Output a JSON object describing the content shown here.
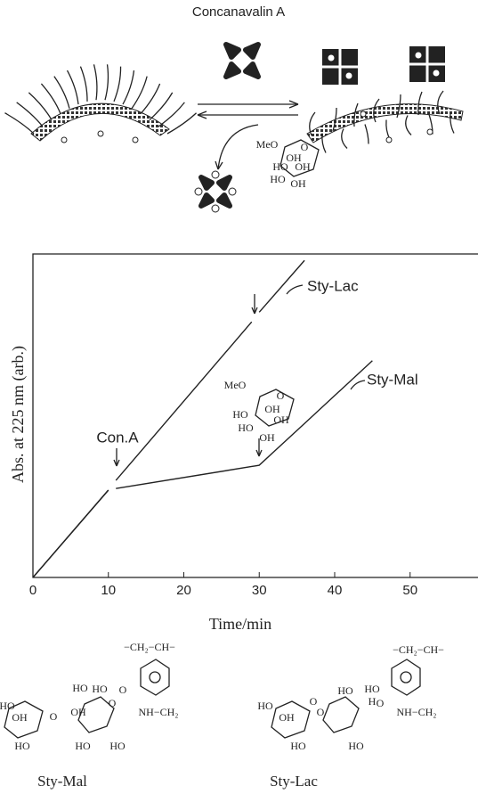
{
  "figure_title": "Concanavalin A",
  "chart_data": {
    "type": "line",
    "x_label": "Time/min",
    "y_label": "Abs. at 225 nm (arb.)",
    "x": [
      0,
      10,
      10.5,
      11,
      29,
      29.5,
      30,
      36,
      45
    ],
    "series": [
      {
        "name": "Sty-Lac",
        "color": "#222222",
        "values": [
          0,
          27,
          null,
          30,
          79,
          null,
          82,
          98,
          null
        ]
      },
      {
        "name": "Sty-Mal",
        "color": "#222222",
        "values": [
          0,
          27,
          null,
          27.5,
          34.3,
          34.5,
          34.7,
          47.6,
          67
        ]
      }
    ],
    "xlim": [
      0,
      59
    ],
    "ylim": [
      0,
      100
    ],
    "xticks": [
      0,
      10,
      20,
      30,
      40,
      50
    ],
    "annotations": [
      "Con.A"
    ],
    "inset_labels": [
      "MeO",
      "O",
      "HO",
      "OH",
      "OH",
      "HO",
      "OH"
    ]
  },
  "scheme_labels": [
    "MeO",
    "O",
    "OH",
    "OH",
    "HO",
    "HO",
    "OH"
  ],
  "structures": [
    {
      "name": "Sty-Mal",
      "labels": [
        "−CH₂−CH−",
        "HO",
        "OH",
        "O",
        "HO",
        "HO",
        "O",
        "HO",
        "OH",
        "O",
        "NH−CH₂",
        "HO",
        "HO"
      ]
    },
    {
      "name": "Sty-Lac",
      "labels": [
        "−CH₂−CH−",
        "HO",
        "OH",
        "O",
        "HO",
        "HO",
        "H",
        "O",
        "O",
        "NH−CH₂",
        "HO",
        "HO"
      ]
    }
  ]
}
